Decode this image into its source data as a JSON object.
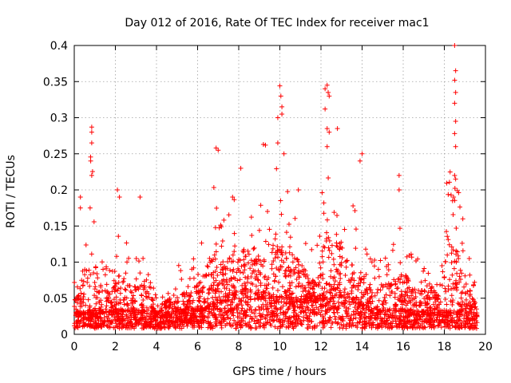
{
  "chart_data": {
    "type": "scatter",
    "title": "Day 012 of 2016, Rate Of TEC Index for receiver mac1",
    "xlabel": "GPS time / hours",
    "ylabel": "ROTI / TECUs",
    "xlim": [
      0,
      20
    ],
    "ylim": [
      0,
      0.4
    ],
    "xticks": [
      0,
      2,
      4,
      6,
      8,
      10,
      12,
      14,
      16,
      18,
      20
    ],
    "yticks": [
      0,
      0.05,
      0.1,
      0.15,
      0.2,
      0.25,
      0.3,
      0.35,
      0.4
    ],
    "ytick_labels": [
      "0",
      "0.05",
      "0.1",
      "0.15",
      "0.2",
      "0.25",
      "0.3",
      "0.35",
      "0.4"
    ],
    "xtick_labels": [
      "0",
      "2",
      "4",
      "6",
      "8",
      "10",
      "12",
      "14",
      "16",
      "18",
      "20"
    ],
    "grid": true,
    "marker": "+",
    "color": "#ff0000",
    "envelope": {
      "x": [
        0,
        0.3,
        0.6,
        0.8,
        1.2,
        1.8,
        2.2,
        2.8,
        3.4,
        4.0,
        4.4,
        5.0,
        5.6,
        6.2,
        6.8,
        7.3,
        7.8,
        8.3,
        8.8,
        9.3,
        9.8,
        10.2,
        10.8,
        11.4,
        11.9,
        12.3,
        12.7,
        13.2,
        13.7,
        14.2,
        14.8,
        15.4,
        16.0,
        16.6,
        17.2,
        17.8,
        18.3,
        18.7,
        19.2,
        19.6
      ],
      "base": [
        0.015,
        0.02,
        0.02,
        0.02,
        0.02,
        0.02,
        0.02,
        0.02,
        0.02,
        0.015,
        0.015,
        0.02,
        0.02,
        0.025,
        0.03,
        0.035,
        0.04,
        0.045,
        0.04,
        0.04,
        0.035,
        0.035,
        0.035,
        0.035,
        0.035,
        0.04,
        0.045,
        0.04,
        0.03,
        0.025,
        0.02,
        0.02,
        0.02,
        0.02,
        0.02,
        0.02,
        0.02,
        0.02,
        0.02,
        0.015
      ],
      "peak": [
        0.08,
        0.14,
        0.12,
        0.25,
        0.12,
        0.08,
        0.15,
        0.1,
        0.12,
        0.05,
        0.06,
        0.09,
        0.09,
        0.12,
        0.22,
        0.17,
        0.18,
        0.2,
        0.16,
        0.22,
        0.25,
        0.2,
        0.18,
        0.12,
        0.12,
        0.3,
        0.24,
        0.2,
        0.16,
        0.12,
        0.1,
        0.12,
        0.15,
        0.1,
        0.09,
        0.08,
        0.3,
        0.2,
        0.1,
        0.05
      ]
    },
    "notable_points": [
      {
        "x": 0.85,
        "y": 0.287
      },
      {
        "x": 0.85,
        "y": 0.28
      },
      {
        "x": 0.85,
        "y": 0.265
      },
      {
        "x": 0.8,
        "y": 0.24
      },
      {
        "x": 0.85,
        "y": 0.22
      },
      {
        "x": 0.3,
        "y": 0.19
      },
      {
        "x": 0.3,
        "y": 0.175
      },
      {
        "x": 2.1,
        "y": 0.2
      },
      {
        "x": 2.2,
        "y": 0.19
      },
      {
        "x": 3.2,
        "y": 0.19
      },
      {
        "x": 6.9,
        "y": 0.258
      },
      {
        "x": 7.0,
        "y": 0.255
      },
      {
        "x": 7.7,
        "y": 0.19
      },
      {
        "x": 8.1,
        "y": 0.23
      },
      {
        "x": 9.2,
        "y": 0.263
      },
      {
        "x": 9.3,
        "y": 0.262
      },
      {
        "x": 9.9,
        "y": 0.265
      },
      {
        "x": 9.9,
        "y": 0.3
      },
      {
        "x": 10.0,
        "y": 0.344
      },
      {
        "x": 10.05,
        "y": 0.33
      },
      {
        "x": 10.1,
        "y": 0.315
      },
      {
        "x": 10.1,
        "y": 0.305
      },
      {
        "x": 10.2,
        "y": 0.25
      },
      {
        "x": 10.9,
        "y": 0.2
      },
      {
        "x": 12.2,
        "y": 0.34
      },
      {
        "x": 12.3,
        "y": 0.345
      },
      {
        "x": 12.35,
        "y": 0.335
      },
      {
        "x": 12.4,
        "y": 0.33
      },
      {
        "x": 12.2,
        "y": 0.312
      },
      {
        "x": 12.3,
        "y": 0.285
      },
      {
        "x": 12.4,
        "y": 0.28
      },
      {
        "x": 12.8,
        "y": 0.285
      },
      {
        "x": 12.3,
        "y": 0.26
      },
      {
        "x": 14.0,
        "y": 0.25
      },
      {
        "x": 13.9,
        "y": 0.24
      },
      {
        "x": 15.8,
        "y": 0.22
      },
      {
        "x": 15.8,
        "y": 0.2
      },
      {
        "x": 18.5,
        "y": 0.4
      },
      {
        "x": 18.55,
        "y": 0.365
      },
      {
        "x": 18.5,
        "y": 0.352
      },
      {
        "x": 18.55,
        "y": 0.335
      },
      {
        "x": 18.5,
        "y": 0.32
      },
      {
        "x": 18.55,
        "y": 0.295
      },
      {
        "x": 18.5,
        "y": 0.278
      },
      {
        "x": 18.55,
        "y": 0.26
      },
      {
        "x": 18.5,
        "y": 0.22
      },
      {
        "x": 18.55,
        "y": 0.215
      },
      {
        "x": 18.9,
        "y": 0.16
      },
      {
        "x": 18.4,
        "y": 0.185
      },
      {
        "x": 18.45,
        "y": 0.19
      }
    ],
    "n_points": 3200
  }
}
